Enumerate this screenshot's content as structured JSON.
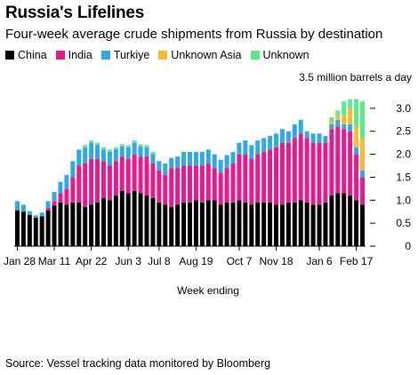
{
  "title": "Russia's Lifelines",
  "subtitle": "Four-week average crude shipments from Russia by destination",
  "source": "Source: Vessel tracking data monitored by Bloomberg",
  "legend": [
    {
      "label": "China",
      "color": "#000000"
    },
    {
      "label": "India",
      "color": "#e8198b"
    },
    {
      "label": "Turkiye",
      "color": "#2ea8e6"
    },
    {
      "label": "Unknown Asia",
      "color": "#f7b92e"
    },
    {
      "label": "Unknown",
      "color": "#5bea8a"
    }
  ],
  "chart_data": {
    "type": "bar",
    "stacked": true,
    "title": "Russia's Lifelines",
    "subtitle": "Four-week average crude shipments from Russia by destination",
    "xlabel": "Week ending",
    "ylabel": "",
    "unit_label": "3.5 million barrels a day",
    "ylim": [
      0,
      3.5
    ],
    "yticks": [
      0,
      0.5,
      1.0,
      1.5,
      2.0,
      2.5,
      3.0
    ],
    "ytick_labels": [
      "0",
      "0.5",
      "1.0",
      "1.5",
      "2.0",
      "2.5",
      "3.0"
    ],
    "xtick_labels": [
      {
        "index": 0,
        "label": "Jan 28"
      },
      {
        "index": 6,
        "label": "Mar 11"
      },
      {
        "index": 12,
        "label": "Apr 22"
      },
      {
        "index": 18,
        "label": "Jun 3"
      },
      {
        "index": 23,
        "label": "Jul 8"
      },
      {
        "index": 29,
        "label": "Aug 19"
      },
      {
        "index": 36,
        "label": "Oct 7"
      },
      {
        "index": 42,
        "label": "Nov 18"
      },
      {
        "index": 49,
        "label": "Jan 6"
      },
      {
        "index": 55,
        "label": "Feb 17"
      }
    ],
    "grid": false,
    "legend_position": "top",
    "series": [
      {
        "name": "China",
        "color": "#000000",
        "values": [
          0.78,
          0.75,
          0.68,
          0.62,
          0.65,
          0.78,
          0.88,
          0.95,
          0.9,
          0.95,
          0.95,
          0.85,
          0.9,
          0.95,
          1.05,
          1.0,
          1.1,
          1.2,
          1.15,
          1.2,
          1.15,
          1.1,
          1.05,
          0.95,
          0.9,
          0.85,
          0.9,
          0.95,
          0.95,
          1.0,
          0.95,
          1.0,
          1.0,
          0.9,
          0.95,
          0.95,
          1.0,
          0.95,
          0.9,
          0.95,
          0.95,
          0.95,
          0.9,
          0.9,
          0.95,
          0.95,
          1.0,
          0.95,
          0.9,
          0.9,
          0.95,
          1.1,
          1.15,
          1.15,
          1.1,
          1.0,
          0.9
        ]
      },
      {
        "name": "India",
        "color": "#e8198b",
        "values": [
          0.0,
          0.0,
          0.0,
          0.0,
          0.0,
          0.05,
          0.1,
          0.2,
          0.35,
          0.55,
          0.8,
          0.95,
          1.0,
          0.95,
          0.8,
          0.75,
          0.75,
          0.75,
          0.75,
          0.8,
          0.8,
          0.85,
          0.75,
          0.7,
          0.65,
          0.85,
          0.8,
          0.8,
          0.8,
          0.75,
          0.8,
          0.8,
          0.7,
          0.7,
          0.75,
          0.85,
          1.0,
          1.05,
          1.0,
          1.05,
          1.1,
          1.15,
          1.25,
          1.35,
          1.3,
          1.4,
          1.45,
          1.4,
          1.35,
          1.35,
          1.3,
          1.45,
          1.45,
          1.4,
          1.4,
          1.0,
          0.6
        ]
      },
      {
        "name": "Turkiye",
        "color": "#2ea8e6",
        "values": [
          0.2,
          0.15,
          0.08,
          0.05,
          0.08,
          0.15,
          0.2,
          0.25,
          0.3,
          0.35,
          0.35,
          0.35,
          0.35,
          0.3,
          0.25,
          0.3,
          0.25,
          0.22,
          0.25,
          0.25,
          0.22,
          0.2,
          0.2,
          0.2,
          0.25,
          0.22,
          0.25,
          0.3,
          0.3,
          0.3,
          0.3,
          0.3,
          0.3,
          0.28,
          0.28,
          0.25,
          0.25,
          0.3,
          0.3,
          0.3,
          0.3,
          0.3,
          0.3,
          0.3,
          0.25,
          0.3,
          0.3,
          0.15,
          0.2,
          0.2,
          0.15,
          0.1,
          0.15,
          0.1,
          0.15,
          0.15,
          0.15
        ]
      },
      {
        "name": "Unknown Asia",
        "color": "#f7b92e",
        "values": [
          0,
          0,
          0,
          0,
          0,
          0,
          0,
          0,
          0,
          0,
          0,
          0,
          0,
          0,
          0,
          0,
          0,
          0,
          0,
          0,
          0,
          0,
          0,
          0,
          0,
          0,
          0,
          0,
          0,
          0,
          0,
          0,
          0,
          0,
          0,
          0,
          0,
          0,
          0,
          0,
          0,
          0,
          0,
          0,
          0,
          0,
          0,
          0,
          0,
          0,
          0,
          0.05,
          0.1,
          0.2,
          0.35,
          0.45,
          0.7
        ]
      },
      {
        "name": "Unknown",
        "color": "#5bea8a",
        "values": [
          0,
          0,
          0,
          0,
          0,
          0,
          0,
          0,
          0,
          0,
          0,
          0.05,
          0.05,
          0.05,
          0.05,
          0.05,
          0.05,
          0.05,
          0.05,
          0.05,
          0.05,
          0.05,
          0.05,
          0.0,
          0,
          0,
          0,
          0,
          0,
          0,
          0,
          0,
          0,
          0,
          0,
          0,
          0,
          0,
          0,
          0,
          0,
          0,
          0,
          0,
          0,
          0,
          0,
          0,
          0,
          0,
          0,
          0.1,
          0.1,
          0.3,
          0.2,
          0.6,
          0.8
        ]
      }
    ]
  }
}
